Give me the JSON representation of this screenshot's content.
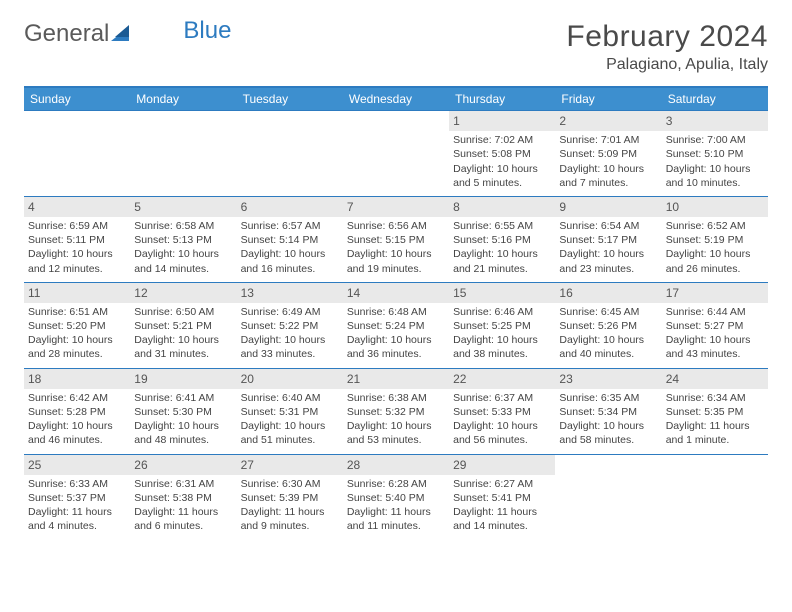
{
  "brand": {
    "part1": "General",
    "part2": "Blue"
  },
  "title": "February 2024",
  "location": "Palagiano, Apulia, Italy",
  "colors": {
    "header_bar": "#3d8fcf",
    "border": "#2d7bc0",
    "day_num_bg": "#e9e9e9",
    "text": "#444444",
    "title_text": "#4a4a4a"
  },
  "weekdays": [
    "Sunday",
    "Monday",
    "Tuesday",
    "Wednesday",
    "Thursday",
    "Friday",
    "Saturday"
  ],
  "weeks": [
    [
      {
        "n": "",
        "lines": []
      },
      {
        "n": "",
        "lines": []
      },
      {
        "n": "",
        "lines": []
      },
      {
        "n": "",
        "lines": []
      },
      {
        "n": "1",
        "lines": [
          "Sunrise: 7:02 AM",
          "Sunset: 5:08 PM",
          "Daylight: 10 hours and 5 minutes."
        ]
      },
      {
        "n": "2",
        "lines": [
          "Sunrise: 7:01 AM",
          "Sunset: 5:09 PM",
          "Daylight: 10 hours and 7 minutes."
        ]
      },
      {
        "n": "3",
        "lines": [
          "Sunrise: 7:00 AM",
          "Sunset: 5:10 PM",
          "Daylight: 10 hours and 10 minutes."
        ]
      }
    ],
    [
      {
        "n": "4",
        "lines": [
          "Sunrise: 6:59 AM",
          "Sunset: 5:11 PM",
          "Daylight: 10 hours and 12 minutes."
        ]
      },
      {
        "n": "5",
        "lines": [
          "Sunrise: 6:58 AM",
          "Sunset: 5:13 PM",
          "Daylight: 10 hours and 14 minutes."
        ]
      },
      {
        "n": "6",
        "lines": [
          "Sunrise: 6:57 AM",
          "Sunset: 5:14 PM",
          "Daylight: 10 hours and 16 minutes."
        ]
      },
      {
        "n": "7",
        "lines": [
          "Sunrise: 6:56 AM",
          "Sunset: 5:15 PM",
          "Daylight: 10 hours and 19 minutes."
        ]
      },
      {
        "n": "8",
        "lines": [
          "Sunrise: 6:55 AM",
          "Sunset: 5:16 PM",
          "Daylight: 10 hours and 21 minutes."
        ]
      },
      {
        "n": "9",
        "lines": [
          "Sunrise: 6:54 AM",
          "Sunset: 5:17 PM",
          "Daylight: 10 hours and 23 minutes."
        ]
      },
      {
        "n": "10",
        "lines": [
          "Sunrise: 6:52 AM",
          "Sunset: 5:19 PM",
          "Daylight: 10 hours and 26 minutes."
        ]
      }
    ],
    [
      {
        "n": "11",
        "lines": [
          "Sunrise: 6:51 AM",
          "Sunset: 5:20 PM",
          "Daylight: 10 hours and 28 minutes."
        ]
      },
      {
        "n": "12",
        "lines": [
          "Sunrise: 6:50 AM",
          "Sunset: 5:21 PM",
          "Daylight: 10 hours and 31 minutes."
        ]
      },
      {
        "n": "13",
        "lines": [
          "Sunrise: 6:49 AM",
          "Sunset: 5:22 PM",
          "Daylight: 10 hours and 33 minutes."
        ]
      },
      {
        "n": "14",
        "lines": [
          "Sunrise: 6:48 AM",
          "Sunset: 5:24 PM",
          "Daylight: 10 hours and 36 minutes."
        ]
      },
      {
        "n": "15",
        "lines": [
          "Sunrise: 6:46 AM",
          "Sunset: 5:25 PM",
          "Daylight: 10 hours and 38 minutes."
        ]
      },
      {
        "n": "16",
        "lines": [
          "Sunrise: 6:45 AM",
          "Sunset: 5:26 PM",
          "Daylight: 10 hours and 40 minutes."
        ]
      },
      {
        "n": "17",
        "lines": [
          "Sunrise: 6:44 AM",
          "Sunset: 5:27 PM",
          "Daylight: 10 hours and 43 minutes."
        ]
      }
    ],
    [
      {
        "n": "18",
        "lines": [
          "Sunrise: 6:42 AM",
          "Sunset: 5:28 PM",
          "Daylight: 10 hours and 46 minutes."
        ]
      },
      {
        "n": "19",
        "lines": [
          "Sunrise: 6:41 AM",
          "Sunset: 5:30 PM",
          "Daylight: 10 hours and 48 minutes."
        ]
      },
      {
        "n": "20",
        "lines": [
          "Sunrise: 6:40 AM",
          "Sunset: 5:31 PM",
          "Daylight: 10 hours and 51 minutes."
        ]
      },
      {
        "n": "21",
        "lines": [
          "Sunrise: 6:38 AM",
          "Sunset: 5:32 PM",
          "Daylight: 10 hours and 53 minutes."
        ]
      },
      {
        "n": "22",
        "lines": [
          "Sunrise: 6:37 AM",
          "Sunset: 5:33 PM",
          "Daylight: 10 hours and 56 minutes."
        ]
      },
      {
        "n": "23",
        "lines": [
          "Sunrise: 6:35 AM",
          "Sunset: 5:34 PM",
          "Daylight: 10 hours and 58 minutes."
        ]
      },
      {
        "n": "24",
        "lines": [
          "Sunrise: 6:34 AM",
          "Sunset: 5:35 PM",
          "Daylight: 11 hours and 1 minute."
        ]
      }
    ],
    [
      {
        "n": "25",
        "lines": [
          "Sunrise: 6:33 AM",
          "Sunset: 5:37 PM",
          "Daylight: 11 hours and 4 minutes."
        ]
      },
      {
        "n": "26",
        "lines": [
          "Sunrise: 6:31 AM",
          "Sunset: 5:38 PM",
          "Daylight: 11 hours and 6 minutes."
        ]
      },
      {
        "n": "27",
        "lines": [
          "Sunrise: 6:30 AM",
          "Sunset: 5:39 PM",
          "Daylight: 11 hours and 9 minutes."
        ]
      },
      {
        "n": "28",
        "lines": [
          "Sunrise: 6:28 AM",
          "Sunset: 5:40 PM",
          "Daylight: 11 hours and 11 minutes."
        ]
      },
      {
        "n": "29",
        "lines": [
          "Sunrise: 6:27 AM",
          "Sunset: 5:41 PM",
          "Daylight: 11 hours and 14 minutes."
        ]
      },
      {
        "n": "",
        "lines": []
      },
      {
        "n": "",
        "lines": []
      }
    ]
  ]
}
